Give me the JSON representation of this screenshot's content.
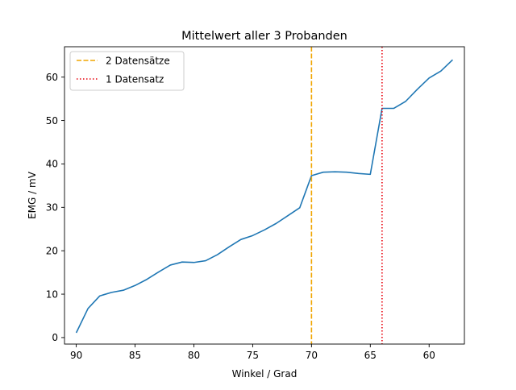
{
  "chart_data": {
    "type": "line",
    "title": "Mittelwert aller 3 Probanden",
    "xlabel": "Winkel / Grad",
    "ylabel": "EMG / mV",
    "x_inverted": true,
    "xlim": [
      91,
      57
    ],
    "ylim": [
      -1.5,
      67
    ],
    "x_ticks": [
      90,
      85,
      80,
      75,
      70,
      65,
      60
    ],
    "y_ticks": [
      0,
      10,
      20,
      30,
      40,
      50,
      60
    ],
    "grid": false,
    "legend_position": "top-left",
    "series": [
      {
        "color": "#1f77b4",
        "x": [
          90,
          89,
          88,
          87,
          86,
          85,
          84,
          83,
          82,
          81,
          80,
          79,
          78,
          77,
          76,
          75,
          74,
          73,
          72,
          71,
          70,
          69,
          68,
          67,
          66,
          65,
          64,
          63,
          62,
          61,
          60,
          59,
          58
        ],
        "y": [
          1.1,
          6.7,
          9.6,
          10.4,
          10.9,
          12.0,
          13.4,
          15.1,
          16.7,
          17.4,
          17.3,
          17.7,
          19.1,
          20.9,
          22.6,
          23.5,
          24.8,
          26.3,
          28.1,
          29.9,
          37.3,
          38.1,
          38.2,
          38.1,
          37.8,
          37.6,
          52.8,
          52.8,
          54.4,
          57.2,
          59.8,
          61.4,
          64.0
        ]
      }
    ],
    "vlines": [
      {
        "x": 70,
        "label": "2 Datensätze",
        "color": "#f0a500",
        "style": "dashed"
      },
      {
        "x": 64,
        "label": "1 Datensatz",
        "color": "#e8000b",
        "style": "dotted"
      }
    ]
  }
}
